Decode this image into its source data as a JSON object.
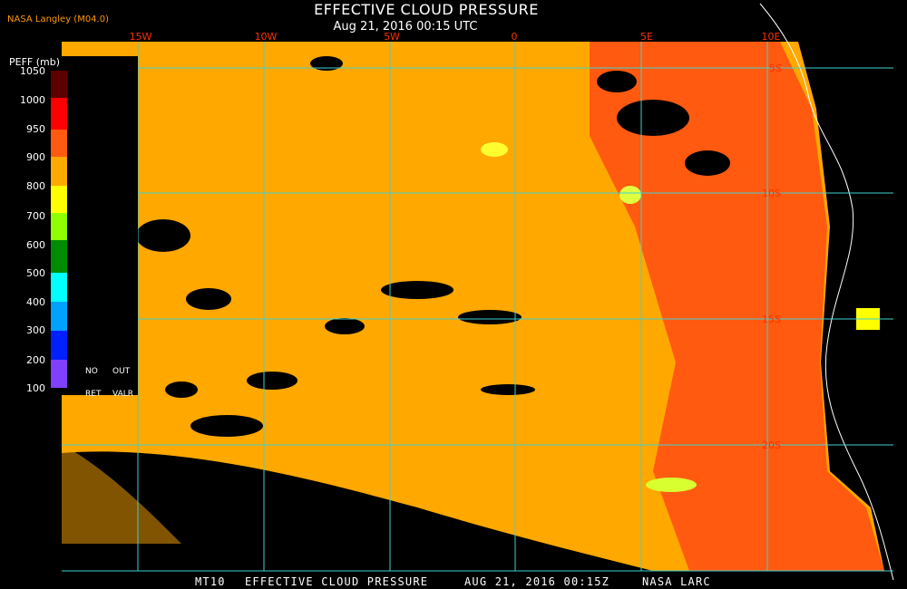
{
  "header": {
    "credit": "NASA Langley (M04.0)",
    "title": "EFFECTIVE CLOUD PRESSURE",
    "subtitle": "Aug 21, 2016 00:15 UTC"
  },
  "legend": {
    "title": "PEFF (mb)",
    "labels": [
      "1050",
      "1000",
      "950",
      "900",
      "800",
      "700",
      "600",
      "500",
      "400",
      "300",
      "200",
      "100"
    ],
    "notes": [
      "NO",
      "OUT",
      "RET",
      "VALR"
    ]
  },
  "map": {
    "longitude_labels": [
      "15W",
      "10W",
      "5W",
      "0",
      "5E",
      "10E"
    ],
    "latitude_labels": [
      "5S",
      "10S",
      "15S",
      "20S"
    ]
  },
  "footer": {
    "satellite": "MT10",
    "product": "EFFECTIVE CLOUD PRESSURE",
    "time": "AUG 21, 2016 00:15Z",
    "source": "NASA LARC"
  }
}
